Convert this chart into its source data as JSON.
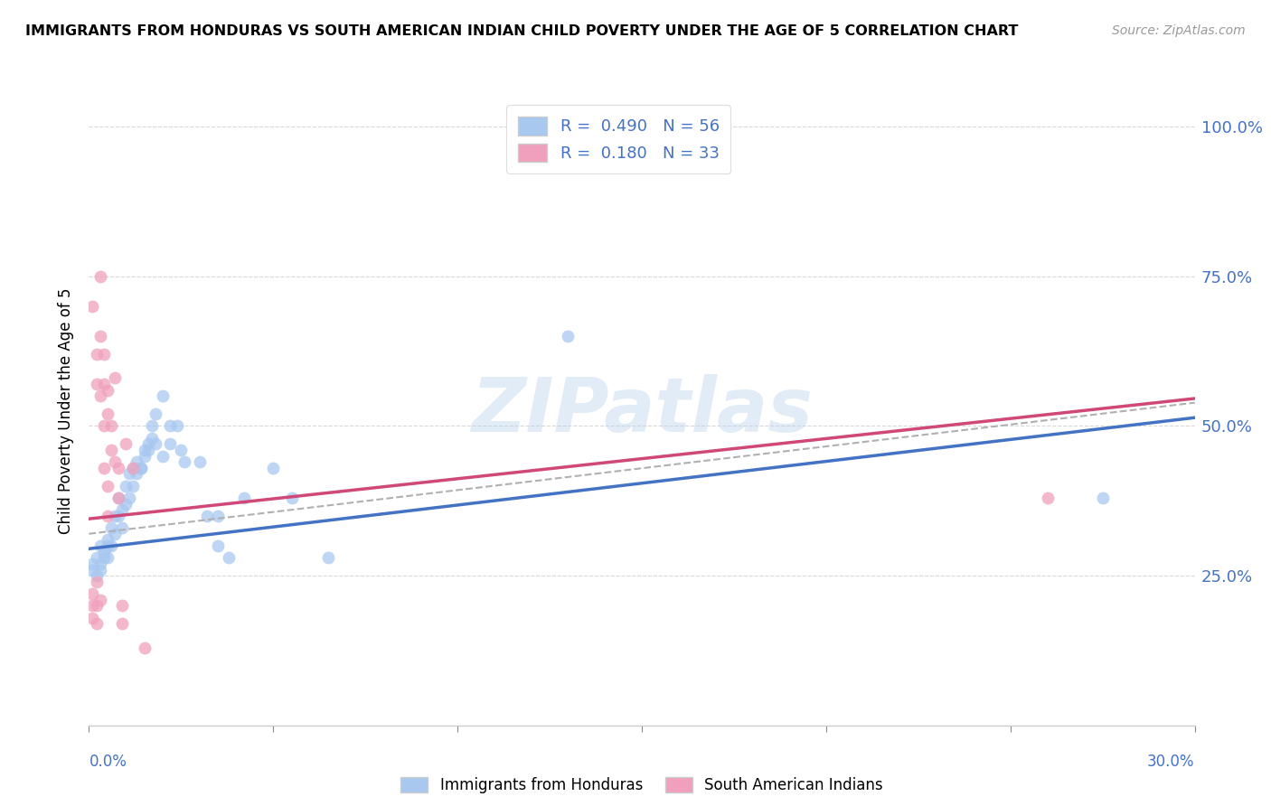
{
  "title": "IMMIGRANTS FROM HONDURAS VS SOUTH AMERICAN INDIAN CHILD POVERTY UNDER THE AGE OF 5 CORRELATION CHART",
  "source": "Source: ZipAtlas.com",
  "ylabel": "Child Poverty Under the Age of 5",
  "ytick_vals": [
    0.0,
    0.25,
    0.5,
    0.75,
    1.0
  ],
  "ytick_labels": [
    "",
    "25.0%",
    "50.0%",
    "75.0%",
    "100.0%"
  ],
  "xlim": [
    0.0,
    0.3
  ],
  "ylim": [
    0.0,
    1.05
  ],
  "blue_color": "#A8C8F0",
  "pink_color": "#F0A0BC",
  "blue_line_color": "#4472C4",
  "pink_line_color": "#D04878",
  "gray_line_color": "#B0B0B0",
  "legend_blue_label": "R =  0.490   N = 56",
  "legend_pink_label": "R =  0.180   N = 33",
  "blue_intercept": 0.295,
  "blue_slope": 0.73,
  "pink_intercept": 0.345,
  "pink_slope": 0.67,
  "gray_intercept": 0.32,
  "gray_slope": 0.73,
  "watermark": "ZIPatlas",
  "legend_label_blue": "Immigrants from Honduras",
  "legend_label_pink": "South American Indians",
  "blue_scatter": [
    [
      0.001,
      0.27
    ],
    [
      0.001,
      0.26
    ],
    [
      0.002,
      0.25
    ],
    [
      0.002,
      0.28
    ],
    [
      0.003,
      0.27
    ],
    [
      0.003,
      0.3
    ],
    [
      0.003,
      0.26
    ],
    [
      0.004,
      0.29
    ],
    [
      0.004,
      0.28
    ],
    [
      0.005,
      0.31
    ],
    [
      0.005,
      0.3
    ],
    [
      0.005,
      0.28
    ],
    [
      0.006,
      0.33
    ],
    [
      0.006,
      0.3
    ],
    [
      0.007,
      0.35
    ],
    [
      0.007,
      0.32
    ],
    [
      0.008,
      0.38
    ],
    [
      0.008,
      0.35
    ],
    [
      0.009,
      0.36
    ],
    [
      0.009,
      0.33
    ],
    [
      0.01,
      0.4
    ],
    [
      0.01,
      0.37
    ],
    [
      0.011,
      0.42
    ],
    [
      0.011,
      0.38
    ],
    [
      0.012,
      0.4
    ],
    [
      0.012,
      0.43
    ],
    [
      0.013,
      0.42
    ],
    [
      0.013,
      0.44
    ],
    [
      0.014,
      0.43
    ],
    [
      0.014,
      0.43
    ],
    [
      0.015,
      0.46
    ],
    [
      0.015,
      0.45
    ],
    [
      0.016,
      0.47
    ],
    [
      0.016,
      0.46
    ],
    [
      0.017,
      0.5
    ],
    [
      0.017,
      0.48
    ],
    [
      0.018,
      0.52
    ],
    [
      0.018,
      0.47
    ],
    [
      0.02,
      0.45
    ],
    [
      0.02,
      0.55
    ],
    [
      0.022,
      0.5
    ],
    [
      0.022,
      0.47
    ],
    [
      0.024,
      0.5
    ],
    [
      0.025,
      0.46
    ],
    [
      0.026,
      0.44
    ],
    [
      0.03,
      0.44
    ],
    [
      0.032,
      0.35
    ],
    [
      0.035,
      0.3
    ],
    [
      0.035,
      0.35
    ],
    [
      0.038,
      0.28
    ],
    [
      0.042,
      0.38
    ],
    [
      0.05,
      0.43
    ],
    [
      0.055,
      0.38
    ],
    [
      0.065,
      0.28
    ],
    [
      0.13,
      0.65
    ],
    [
      0.275,
      0.38
    ]
  ],
  "pink_scatter": [
    [
      0.001,
      0.2
    ],
    [
      0.001,
      0.22
    ],
    [
      0.001,
      0.18
    ],
    [
      0.001,
      0.7
    ],
    [
      0.002,
      0.24
    ],
    [
      0.002,
      0.2
    ],
    [
      0.002,
      0.17
    ],
    [
      0.002,
      0.57
    ],
    [
      0.002,
      0.62
    ],
    [
      0.003,
      0.21
    ],
    [
      0.003,
      0.75
    ],
    [
      0.003,
      0.65
    ],
    [
      0.003,
      0.55
    ],
    [
      0.004,
      0.62
    ],
    [
      0.004,
      0.57
    ],
    [
      0.004,
      0.5
    ],
    [
      0.004,
      0.43
    ],
    [
      0.005,
      0.52
    ],
    [
      0.005,
      0.56
    ],
    [
      0.005,
      0.4
    ],
    [
      0.005,
      0.35
    ],
    [
      0.006,
      0.5
    ],
    [
      0.006,
      0.46
    ],
    [
      0.007,
      0.58
    ],
    [
      0.007,
      0.44
    ],
    [
      0.008,
      0.43
    ],
    [
      0.008,
      0.38
    ],
    [
      0.009,
      0.2
    ],
    [
      0.009,
      0.17
    ],
    [
      0.01,
      0.47
    ],
    [
      0.012,
      0.43
    ],
    [
      0.015,
      0.13
    ],
    [
      0.26,
      0.38
    ]
  ]
}
